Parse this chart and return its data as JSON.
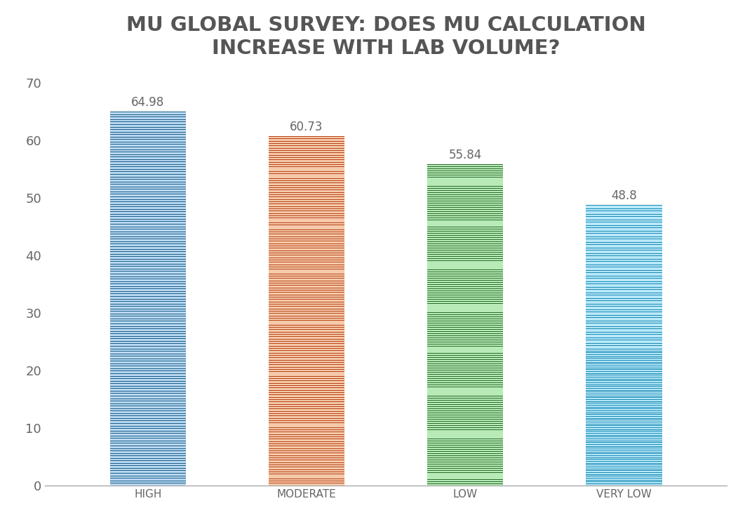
{
  "categories": [
    "HIGH",
    "MODERATE",
    "LOW",
    "VERY LOW"
  ],
  "values": [
    64.98,
    60.73,
    55.84,
    48.8
  ],
  "bar_colors_dark": [
    "#1F5F8B",
    "#B8461A",
    "#2A6E2A",
    "#1A8AB5"
  ],
  "bar_colors_light": [
    "#B8D8F0",
    "#F5C9AA",
    "#B8EAB8",
    "#B8E8F8"
  ],
  "title_line1": "MU GLOBAL SURVEY: DOES MU CALCULATION",
  "title_line2": "INCREASE WITH LAB VOLUME?",
  "title_fontsize": 21,
  "value_fontsize": 12,
  "ytick_fontsize": 13,
  "xtick_fontsize": 11,
  "ylim": [
    0,
    72
  ],
  "yticks": [
    0,
    10,
    20,
    30,
    40,
    50,
    60,
    70
  ],
  "background_color": "#FFFFFF",
  "bar_width": 0.48,
  "stripe_count": 150,
  "dark_stripe_ratio": 0.28
}
